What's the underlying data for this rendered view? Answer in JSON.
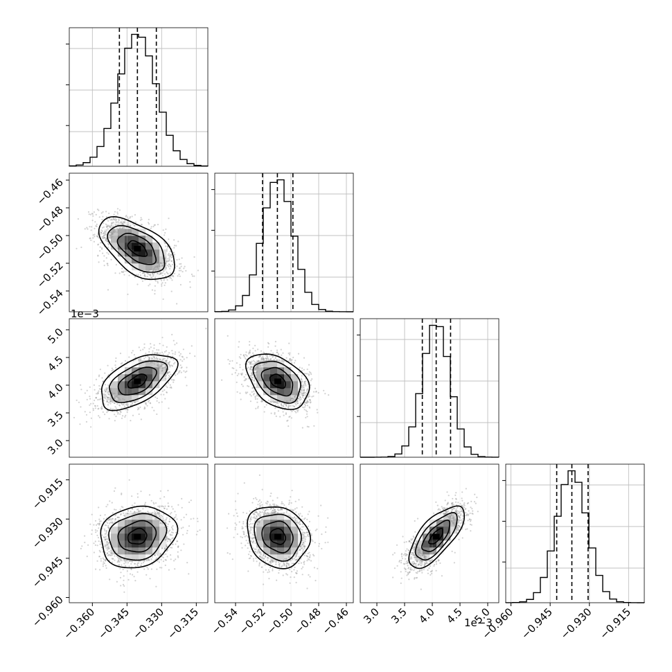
{
  "chart_data": {
    "type": "corner",
    "grid": true,
    "quantile_lines": [
      0.16,
      0.5,
      0.84
    ],
    "parameters": [
      {
        "range": [
          -0.37,
          -0.31
        ],
        "mean": -0.3405,
        "sd": 0.0082,
        "ticks": [
          -0.36,
          -0.345,
          -0.33,
          -0.315
        ],
        "tick_labels": [
          "−0.360",
          "−0.345",
          "−0.330",
          "−0.315"
        ],
        "quantiles": [
          -0.3483,
          -0.3405,
          -0.3323
        ]
      },
      {
        "range": [
          -0.555,
          -0.455
        ],
        "mean": -0.5095,
        "sd": 0.0112,
        "ticks": [
          -0.54,
          -0.52,
          -0.5,
          -0.48,
          -0.46
        ],
        "tick_labels": [
          "−0.54",
          "−0.52",
          "−0.50",
          "−0.48",
          "−0.46"
        ],
        "quantiles": [
          -0.5205,
          -0.5098,
          -0.4986
        ]
      },
      {
        "range": [
          2.7,
          5.2
        ],
        "mean": 4.07,
        "sd": 0.25,
        "ticks": [
          3.0,
          3.5,
          4.0,
          4.5,
          5.0
        ],
        "tick_labels": [
          "3.0",
          "3.5",
          "4.0",
          "4.5",
          "5.0"
        ],
        "quantiles": [
          3.82,
          4.07,
          4.33
        ],
        "offset_label": "1e−3"
      },
      {
        "range": [
          -0.962,
          -0.909
        ],
        "mean": -0.9367,
        "sd": 0.0059,
        "ticks": [
          -0.96,
          -0.945,
          -0.93,
          -0.915
        ],
        "tick_labels": [
          "−0.960",
          "−0.945",
          "−0.930",
          "−0.915"
        ],
        "quantiles": [
          -0.9425,
          -0.9367,
          -0.9305
        ]
      }
    ],
    "correlations": [
      {
        "i": 1,
        "j": 0,
        "rho": -0.55
      },
      {
        "i": 2,
        "j": 0,
        "rho": 0.55
      },
      {
        "i": 2,
        "j": 1,
        "rho": -0.4
      },
      {
        "i": 3,
        "j": 0,
        "rho": 0.15
      },
      {
        "i": 3,
        "j": 1,
        "rho": -0.15
      },
      {
        "i": 3,
        "j": 2,
        "rho": 0.7
      }
    ],
    "contour_sigmas": [
      0.5,
      1.0,
      1.5,
      2.0
    ]
  }
}
